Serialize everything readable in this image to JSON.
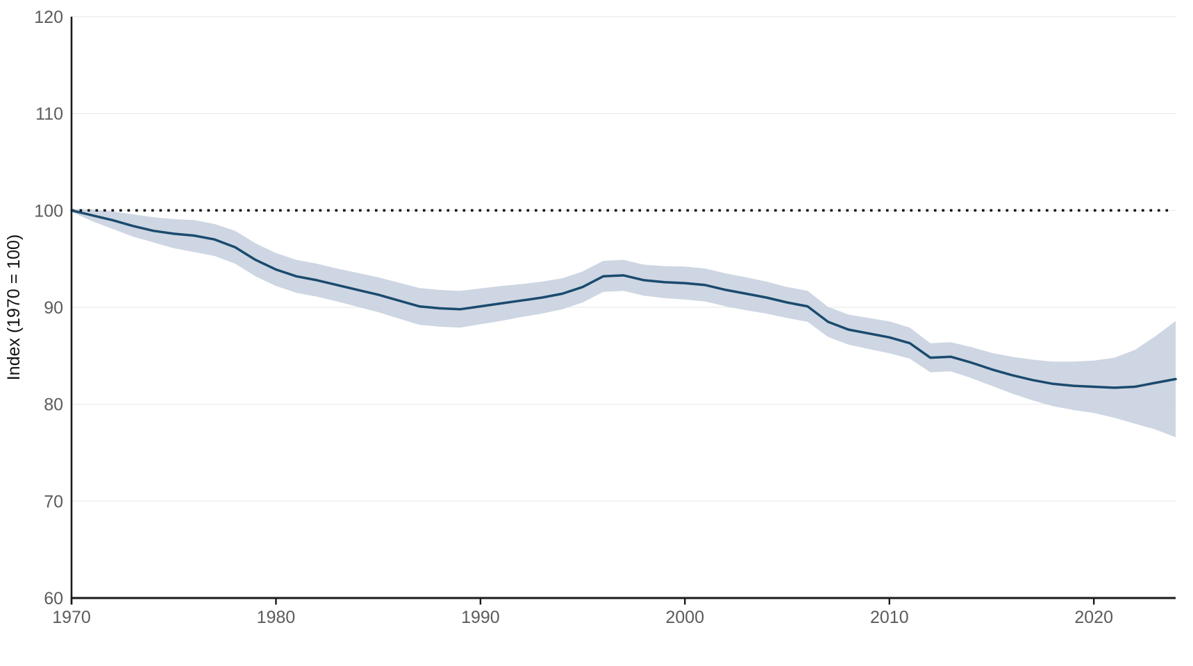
{
  "chart_data": {
    "type": "line",
    "title": "",
    "xlabel": "",
    "ylabel": "Index (1970 = 100)",
    "xlim": [
      1970,
      2024
    ],
    "ylim": [
      60,
      120
    ],
    "xticks": [
      1970,
      1980,
      1990,
      2000,
      2010,
      2020
    ],
    "yticks": [
      60,
      70,
      80,
      90,
      100,
      110,
      120
    ],
    "grid": true,
    "legend": "none",
    "reference_line": {
      "y": 100,
      "style": "dotted",
      "color": "#111111"
    },
    "line_color": "#1b4a6e",
    "band_color": "#c9d3df",
    "grid_color": "#e6e6e6",
    "axis_color": "#1a1a1a",
    "tick_label_color": "#5b5b5b",
    "x": [
      1970,
      1971,
      1972,
      1973,
      1974,
      1975,
      1976,
      1977,
      1978,
      1979,
      1980,
      1981,
      1982,
      1983,
      1984,
      1985,
      1986,
      1987,
      1988,
      1989,
      1990,
      1991,
      1992,
      1993,
      1994,
      1995,
      1996,
      1997,
      1998,
      1999,
      2000,
      2001,
      2002,
      2003,
      2004,
      2005,
      2006,
      2007,
      2008,
      2009,
      2010,
      2011,
      2012,
      2013,
      2014,
      2015,
      2016,
      2017,
      2018,
      2019,
      2020,
      2021,
      2022,
      2023,
      2024
    ],
    "series": [
      {
        "name": "index",
        "values": [
          100,
          99.5,
          99.0,
          98.4,
          97.9,
          97.6,
          97.4,
          97.0,
          96.2,
          94.9,
          93.9,
          93.2,
          92.8,
          92.3,
          91.8,
          91.3,
          90.7,
          90.1,
          89.9,
          89.8,
          90.1,
          90.4,
          90.7,
          91.0,
          91.4,
          92.1,
          93.2,
          93.3,
          92.8,
          92.6,
          92.5,
          92.3,
          91.8,
          91.4,
          91.0,
          90.5,
          90.1,
          88.5,
          87.7,
          87.3,
          86.9,
          86.3,
          84.8,
          84.9,
          84.3,
          83.6,
          83.0,
          82.5,
          82.1,
          81.9,
          81.8,
          81.7,
          81.8,
          82.2,
          82.6
        ]
      }
    ],
    "band": {
      "name": "confidence-interval",
      "lo": [
        99.85,
        98.9,
        98.1,
        97.3,
        96.7,
        96.1,
        95.7,
        95.3,
        94.5,
        93.2,
        92.2,
        91.5,
        91.1,
        90.6,
        90.05,
        89.5,
        88.85,
        88.2,
        88.0,
        87.9,
        88.25,
        88.6,
        89.0,
        89.35,
        89.8,
        90.5,
        91.6,
        91.7,
        91.2,
        90.95,
        90.8,
        90.6,
        90.1,
        89.7,
        89.35,
        88.9,
        88.5,
        86.95,
        86.15,
        85.7,
        85.25,
        84.7,
        83.3,
        83.4,
        82.7,
        81.9,
        81.1,
        80.4,
        79.8,
        79.4,
        79.1,
        78.6,
        78.0,
        77.4,
        76.6
      ],
      "hi": [
        100.15,
        100.1,
        99.9,
        99.6,
        99.3,
        99.1,
        99.0,
        98.6,
        97.9,
        96.6,
        95.6,
        94.9,
        94.5,
        94.0,
        93.55,
        93.1,
        92.55,
        92.0,
        91.8,
        91.7,
        91.95,
        92.2,
        92.4,
        92.65,
        93.0,
        93.7,
        94.8,
        94.9,
        94.4,
        94.25,
        94.2,
        94.0,
        93.5,
        93.1,
        92.65,
        92.1,
        91.7,
        90.05,
        89.25,
        88.9,
        88.55,
        87.9,
        86.3,
        86.4,
        85.9,
        85.3,
        84.9,
        84.6,
        84.4,
        84.4,
        84.5,
        84.8,
        85.6,
        87.0,
        88.6
      ]
    }
  }
}
